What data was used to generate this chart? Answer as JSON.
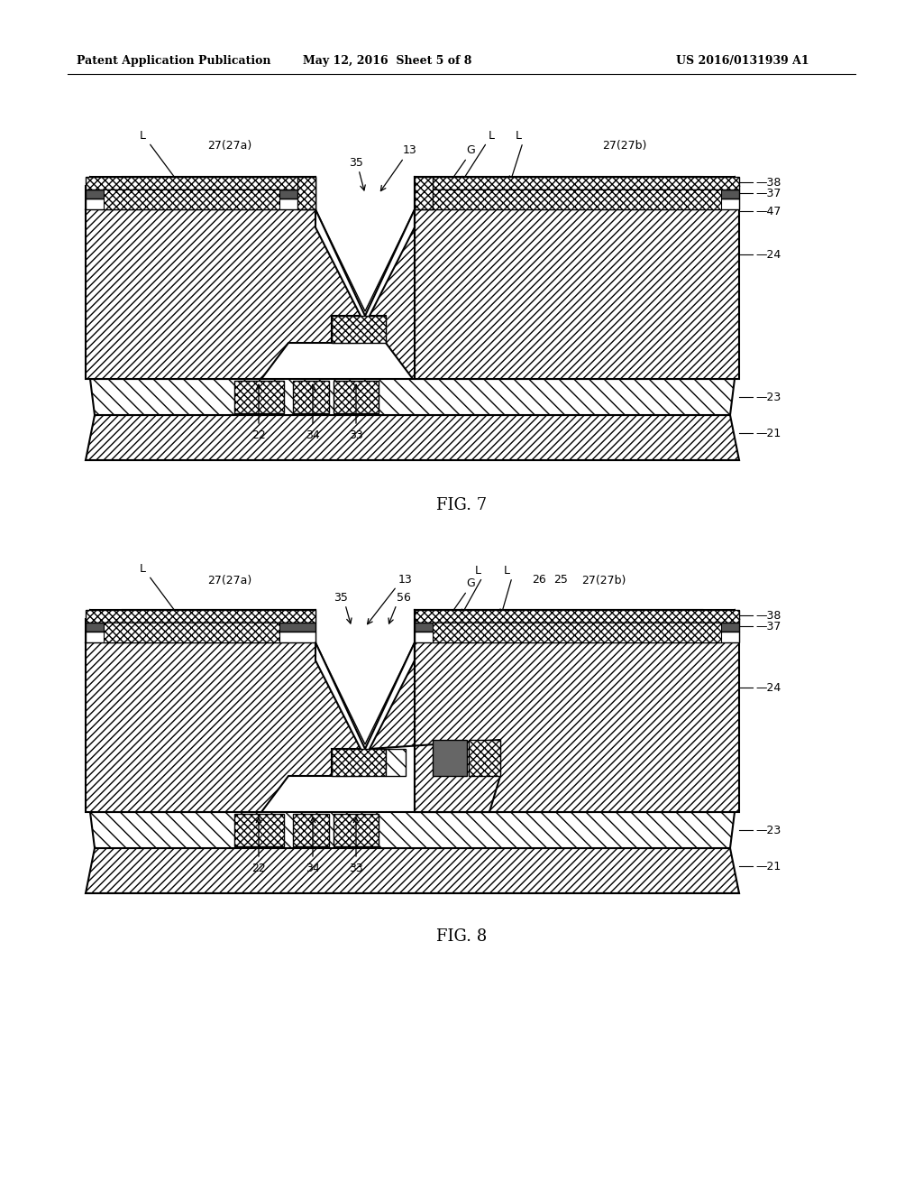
{
  "title_left": "Patent Application Publication",
  "title_center": "May 12, 2016  Sheet 5 of 8",
  "title_right": "US 2016/0131939 A1",
  "fig7_caption": "FIG. 7",
  "fig8_caption": "FIG. 8",
  "bg_color": "#ffffff"
}
